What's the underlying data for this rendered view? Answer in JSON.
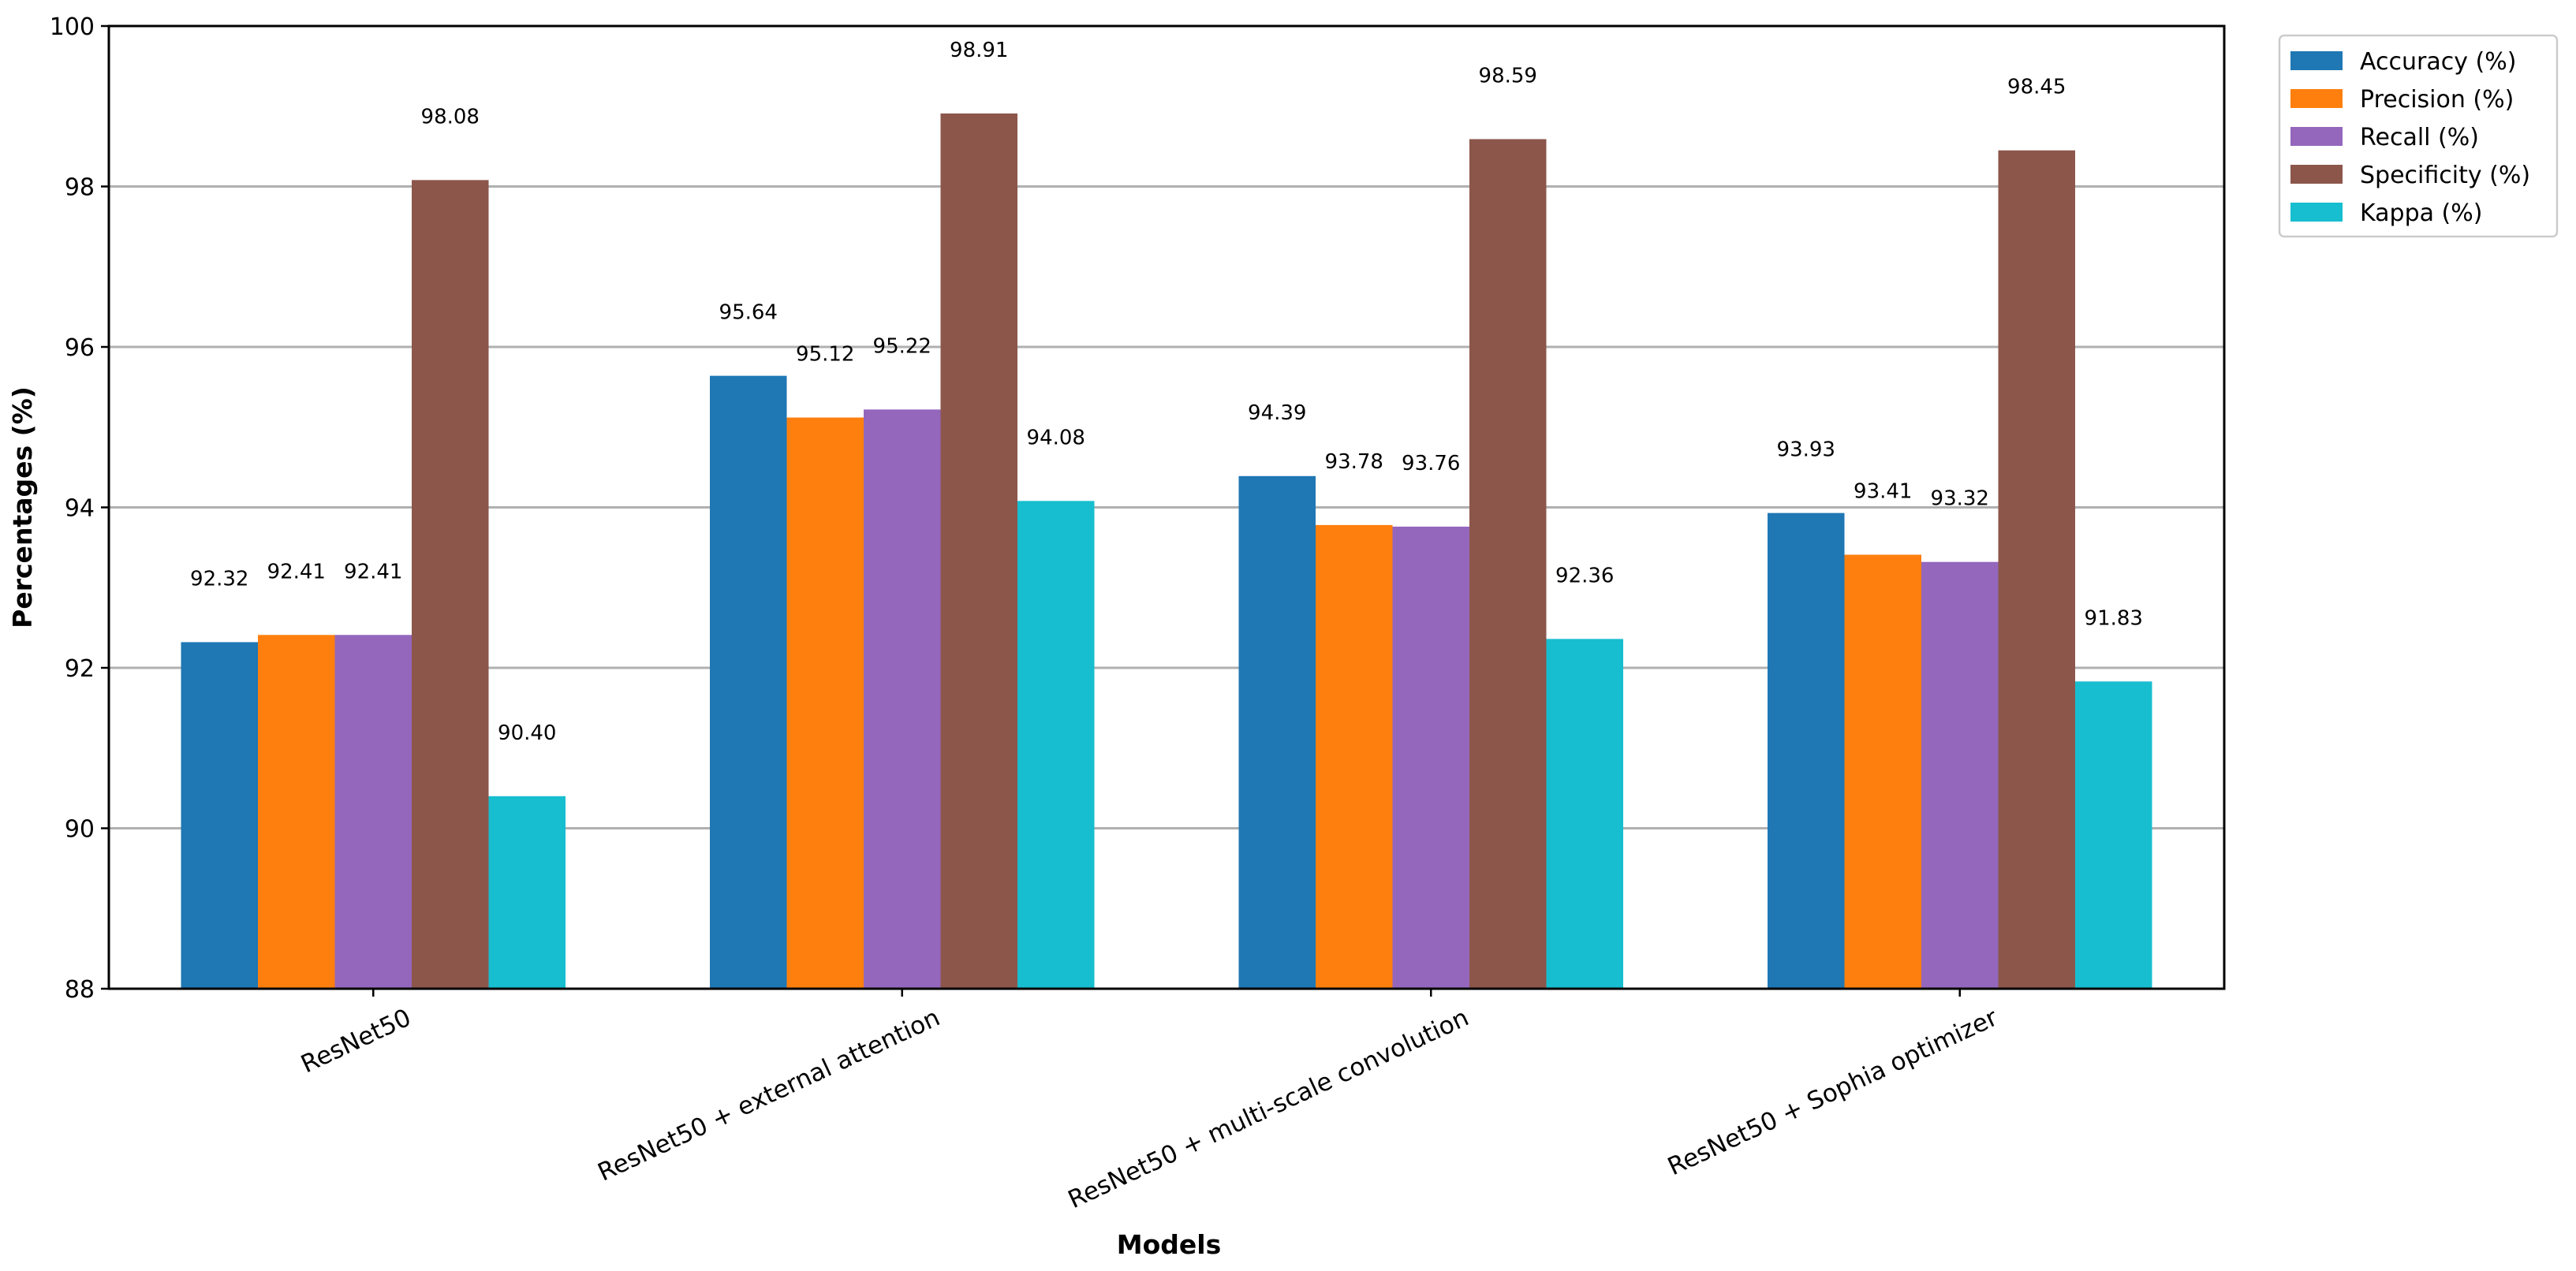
{
  "chart_data": {
    "type": "bar",
    "title": "",
    "xlabel": "Models",
    "ylabel": "Percentages (%)",
    "ylim": [
      88,
      100
    ],
    "yticks": [
      88,
      90,
      92,
      94,
      96,
      98,
      100
    ],
    "grid": "y",
    "legend_position": "outside-top-right",
    "categories": [
      "ResNet50",
      "ResNet50 + external attention",
      "ResNet50 + multi-scale convolution",
      "ResNet50 + Sophia optimizer"
    ],
    "series": [
      {
        "name": "Accuracy (%)",
        "color": "#1f77b4",
        "values": [
          92.32,
          95.64,
          94.39,
          93.93
        ],
        "labels": [
          "92.32",
          "95.64",
          "94.39",
          "93.93"
        ]
      },
      {
        "name": "Precision (%)",
        "color": "#ff7f0e",
        "values": [
          92.41,
          95.12,
          93.78,
          93.41
        ],
        "labels": [
          "92.41",
          "95.12",
          "93.78",
          "93.41"
        ]
      },
      {
        "name": "Recall (%)",
        "color": "#9467bd",
        "values": [
          92.41,
          95.22,
          93.76,
          93.32
        ],
        "labels": [
          "92.41",
          "95.22",
          "93.76",
          "93.32"
        ]
      },
      {
        "name": "Specificity (%)",
        "color": "#8c564b",
        "values": [
          98.08,
          98.91,
          98.59,
          98.45
        ],
        "labels": [
          "98.08",
          "98.91",
          "98.59",
          "98.45"
        ]
      },
      {
        "name": "Kappa (%)",
        "color": "#17becf",
        "values": [
          90.4,
          94.08,
          92.36,
          91.83
        ],
        "labels": [
          "90.40",
          "94.08",
          "92.36",
          "91.83"
        ]
      }
    ]
  }
}
